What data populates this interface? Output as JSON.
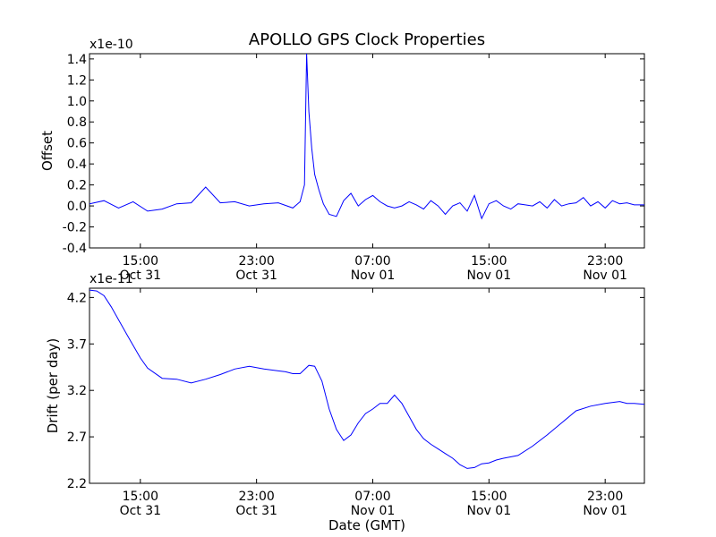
{
  "title": "APOLLO GPS Clock Properties",
  "colors": {
    "line": "#0000ff",
    "axes": "#000000",
    "background": "#ffffff"
  },
  "chart_data": [
    {
      "type": "line",
      "name": "offset-panel",
      "ylabel": "Offset",
      "multiplier_label": "x1e-10",
      "ylim": [
        -0.4,
        1.45
      ],
      "yticks": [
        "-0.4",
        "-0.2",
        "0.0",
        "0.2",
        "0.4",
        "0.6",
        "0.8",
        "1.0",
        "1.2",
        "1.4"
      ],
      "ytick_values": [
        -0.4,
        -0.2,
        0.0,
        0.2,
        0.4,
        0.6,
        0.8,
        1.0,
        1.2,
        1.4
      ],
      "xlim_hours": [
        11.5,
        49.7
      ],
      "xticks": [
        {
          "hour": 15,
          "time": "15:00",
          "date": "Oct 31"
        },
        {
          "hour": 23,
          "time": "23:00",
          "date": "Oct 31"
        },
        {
          "hour": 31,
          "time": "07:00",
          "date": "Nov 01"
        },
        {
          "hour": 39,
          "time": "15:00",
          "date": "Nov 01"
        },
        {
          "hour": 47,
          "time": "23:00",
          "date": "Nov 01"
        }
      ],
      "series": [
        {
          "x_hours": [
            11.5,
            12.5,
            13.5,
            14.5,
            15.5,
            16.5,
            17.5,
            18.5,
            19.5,
            20.5,
            21.5,
            22.5,
            23.5,
            24.5,
            25.5,
            26.0,
            26.3,
            26.45,
            26.6,
            26.8,
            27.0,
            27.3,
            27.6,
            28.0,
            28.5,
            29.0,
            29.5,
            30.0,
            30.5,
            31.0,
            31.5,
            32.0,
            32.5,
            33.0,
            33.5,
            34.0,
            34.5,
            35.0,
            35.5,
            36.0,
            36.5,
            37.0,
            37.5,
            38.0,
            38.5,
            39.0,
            39.5,
            40.0,
            40.5,
            41.0,
            41.5,
            42.0,
            42.5,
            43.0,
            43.5,
            44.0,
            44.5,
            45.0,
            45.5,
            46.0,
            46.5,
            47.0,
            47.5,
            48.0,
            48.5,
            49.0,
            49.7
          ],
          "values": [
            0.02,
            0.05,
            -0.02,
            0.04,
            -0.05,
            -0.03,
            0.02,
            0.03,
            0.18,
            0.03,
            0.04,
            0.0,
            0.02,
            0.03,
            -0.02,
            0.04,
            0.2,
            1.45,
            0.9,
            0.55,
            0.3,
            0.15,
            0.02,
            -0.08,
            -0.1,
            0.05,
            0.12,
            0.0,
            0.06,
            0.1,
            0.04,
            0.0,
            -0.02,
            0.0,
            0.04,
            0.01,
            -0.03,
            0.05,
            0.0,
            -0.08,
            0.0,
            0.03,
            -0.05,
            0.1,
            -0.12,
            0.02,
            0.05,
            0.0,
            -0.03,
            0.02,
            0.01,
            0.0,
            0.04,
            -0.02,
            0.06,
            0.0,
            0.02,
            0.03,
            0.08,
            0.0,
            0.04,
            -0.02,
            0.05,
            0.02,
            0.03,
            0.01,
            0.01
          ]
        }
      ]
    },
    {
      "type": "line",
      "name": "drift-panel",
      "ylabel": "Drift (per day)",
      "xlabel": "Date (GMT)",
      "multiplier_label": "x1e-11",
      "ylim": [
        2.2,
        4.3
      ],
      "yticks": [
        "2.2",
        "2.7",
        "3.2",
        "3.7",
        "4.2"
      ],
      "ytick_values": [
        2.2,
        2.7,
        3.2,
        3.7,
        4.2
      ],
      "xlim_hours": [
        11.5,
        49.7
      ],
      "xticks": [
        {
          "hour": 15,
          "time": "15:00",
          "date": "Oct 31"
        },
        {
          "hour": 23,
          "time": "23:00",
          "date": "Oct 31"
        },
        {
          "hour": 31,
          "time": "07:00",
          "date": "Nov 01"
        },
        {
          "hour": 39,
          "time": "15:00",
          "date": "Nov 01"
        },
        {
          "hour": 47,
          "time": "23:00",
          "date": "Nov 01"
        }
      ],
      "series": [
        {
          "x_hours": [
            11.5,
            12.0,
            12.5,
            13.0,
            14.0,
            15.0,
            15.5,
            16.5,
            17.5,
            18.5,
            19.5,
            20.5,
            21.5,
            22.5,
            23.5,
            24.5,
            25.0,
            25.5,
            26.0,
            26.6,
            27.0,
            27.5,
            28.0,
            28.5,
            29.0,
            29.5,
            30.0,
            30.5,
            31.0,
            31.5,
            32.0,
            32.5,
            33.0,
            33.5,
            34.0,
            34.5,
            35.0,
            35.5,
            36.0,
            36.5,
            37.0,
            37.5,
            38.0,
            38.5,
            39.0,
            39.5,
            40.0,
            41.0,
            42.0,
            43.0,
            44.0,
            45.0,
            46.0,
            47.0,
            48.0,
            48.5,
            49.0,
            49.7
          ],
          "values": [
            4.28,
            4.27,
            4.22,
            4.1,
            3.82,
            3.55,
            3.44,
            3.33,
            3.32,
            3.28,
            3.32,
            3.37,
            3.43,
            3.46,
            3.43,
            3.41,
            3.4,
            3.38,
            3.38,
            3.47,
            3.46,
            3.3,
            3.0,
            2.78,
            2.66,
            2.72,
            2.85,
            2.95,
            3.0,
            3.06,
            3.06,
            3.15,
            3.06,
            2.92,
            2.78,
            2.68,
            2.62,
            2.57,
            2.52,
            2.47,
            2.4,
            2.36,
            2.37,
            2.41,
            2.42,
            2.45,
            2.47,
            2.5,
            2.6,
            2.72,
            2.85,
            2.98,
            3.03,
            3.06,
            3.08,
            3.06,
            3.06,
            3.05
          ]
        }
      ]
    }
  ]
}
